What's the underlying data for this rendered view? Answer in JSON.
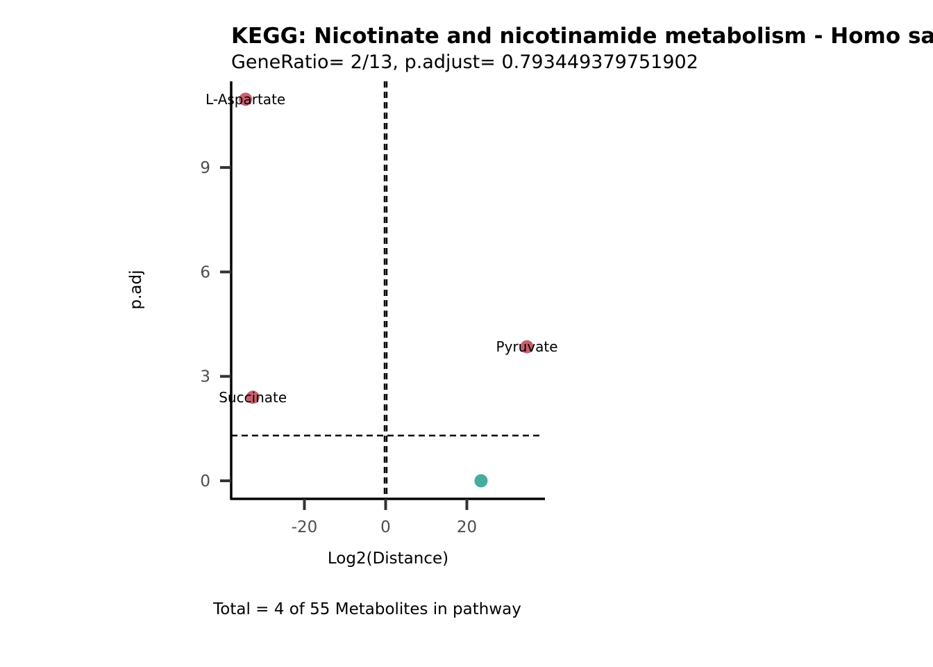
{
  "chart_data": {
    "type": "scatter",
    "title": "KEGG: Nicotinate and nicotinamide metabolism - Homo sapiens (human)",
    "subtitle": "GeneRatio= 2/13, p.adjust= 0.793449379751902",
    "xlabel": "Log2(Distance)",
    "ylabel": "p.adj",
    "caption": "Total = 4 of 55 Metabolites in pathway",
    "xlim": [
      -38,
      39
    ],
    "ylim": [
      -0.5,
      12
    ],
    "x_ticks": [
      -20,
      0,
      20
    ],
    "x_tick_labels": [
      "-20",
      "0",
      "20"
    ],
    "y_ticks": [
      0,
      3,
      6,
      9
    ],
    "y_tick_labels": [
      "0",
      "3",
      "6",
      "9"
    ],
    "grid": false,
    "reference_lines": {
      "vertical_x": [
        -0.25,
        0.25
      ],
      "horizontal_y": 1.3
    },
    "colors": {
      "significant": "#C95F6F",
      "not_significant": "#44AE9F"
    },
    "points": [
      {
        "label": "L-Aspartate",
        "x": -34.5,
        "y": 10.96,
        "group": "significant"
      },
      {
        "label": "Pyruvate",
        "x": 34.8,
        "y": 3.85,
        "group": "significant"
      },
      {
        "label": "Succinate",
        "x": -32.7,
        "y": 2.4,
        "group": "significant"
      },
      {
        "label": "",
        "x": 23.5,
        "y": 0.0,
        "group": "not_significant"
      }
    ]
  }
}
